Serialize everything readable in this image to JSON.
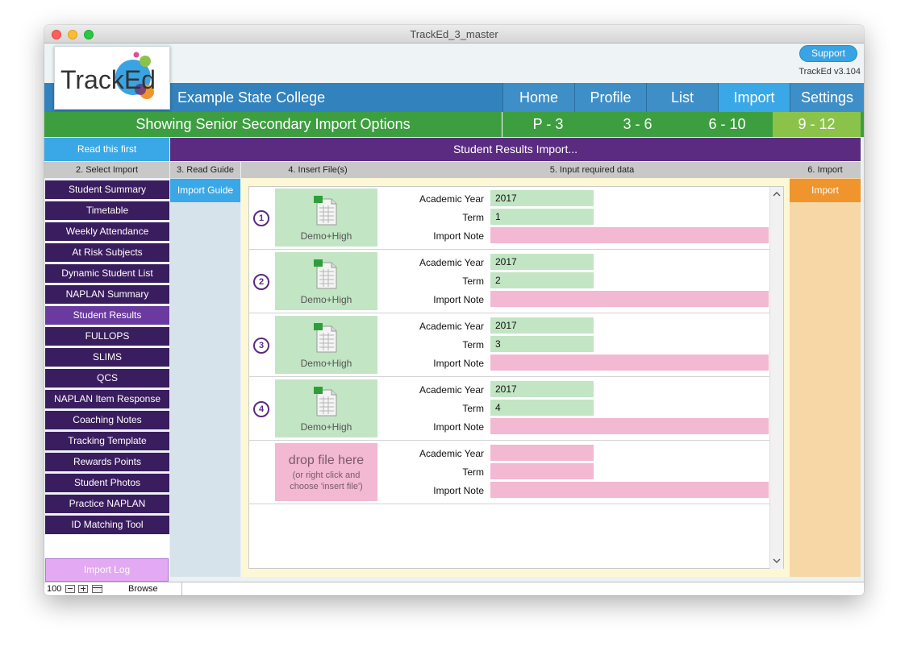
{
  "window": {
    "title": "TrackEd_3_master"
  },
  "header": {
    "logo_text": "TrackEd",
    "support_label": "Support",
    "version": "TrackEd v3.104",
    "school_name": "Example State College"
  },
  "nav": [
    {
      "label": "Home",
      "active": false
    },
    {
      "label": "Profile",
      "active": false
    },
    {
      "label": "List",
      "active": false
    },
    {
      "label": "Import",
      "active": true
    },
    {
      "label": "Settings",
      "active": false
    }
  ],
  "options_bar": {
    "title": "Showing Senior Secondary Import Options",
    "year_levels": [
      {
        "label": "P - 3",
        "active": false
      },
      {
        "label": "3 - 6",
        "active": false
      },
      {
        "label": "6 - 10",
        "active": false
      },
      {
        "label": "9 - 12",
        "active": true
      }
    ]
  },
  "read_first_label": "Read this first",
  "section_title": "Student Results Import...",
  "column_headers": {
    "select_import": "2. Select Import",
    "read_guide": "3. Read Guide",
    "insert_files": "4. Insert File(s)",
    "input_data": "5. Input required data",
    "import": "6. Import"
  },
  "sidebar": {
    "items": [
      {
        "label": "Student Summary",
        "active": false
      },
      {
        "label": "Timetable",
        "active": false
      },
      {
        "label": "Weekly Attendance",
        "active": false
      },
      {
        "label": "At Risk Subjects",
        "active": false
      },
      {
        "label": "Dynamic Student List",
        "active": false
      },
      {
        "label": "NAPLAN Summary",
        "active": false
      },
      {
        "label": "Student Results",
        "active": true
      },
      {
        "label": "FULLOPS",
        "active": false
      },
      {
        "label": "SLIMS",
        "active": false
      },
      {
        "label": "QCS",
        "active": false
      },
      {
        "label": "NAPLAN Item Response",
        "active": false
      },
      {
        "label": "Coaching Notes",
        "active": false
      },
      {
        "label": "Tracking Template",
        "active": false
      },
      {
        "label": "Rewards Points",
        "active": false
      },
      {
        "label": "Student Photos",
        "active": false
      },
      {
        "label": "Practice NAPLAN",
        "active": false
      },
      {
        "label": "ID Matching Tool",
        "active": false
      }
    ],
    "import_log_label": "Import Log"
  },
  "import_guide_label": "Import Guide",
  "import_button_label": "Import",
  "field_labels": {
    "academic_year": "Academic Year",
    "term": "Term",
    "import_note": "Import Note"
  },
  "rows": [
    {
      "number": "1",
      "file_label": "Demo+High",
      "academic_year": "2017",
      "term": "1",
      "import_note": ""
    },
    {
      "number": "2",
      "file_label": "Demo+High",
      "academic_year": "2017",
      "term": "2",
      "import_note": ""
    },
    {
      "number": "3",
      "file_label": "Demo+High",
      "academic_year": "2017",
      "term": "3",
      "import_note": ""
    },
    {
      "number": "4",
      "file_label": "Demo+High",
      "academic_year": "2017",
      "term": "4",
      "import_note": ""
    }
  ],
  "drop_zone": {
    "title": "drop file here",
    "hint_line1": "(or right click and",
    "hint_line2": "choose 'insert file')"
  },
  "status_bar": {
    "zoom": "100",
    "mode": "Browse"
  },
  "colors": {
    "nav_blue": "#3282bd",
    "nav_active": "#3aa8e6",
    "green_bar": "#3d9e3f",
    "year_active": "#8bc34a",
    "purple": "#5b2b82",
    "field_green": "#c2e5c4",
    "field_pink": "#f3b8d2",
    "import_orange": "#f0942e"
  }
}
